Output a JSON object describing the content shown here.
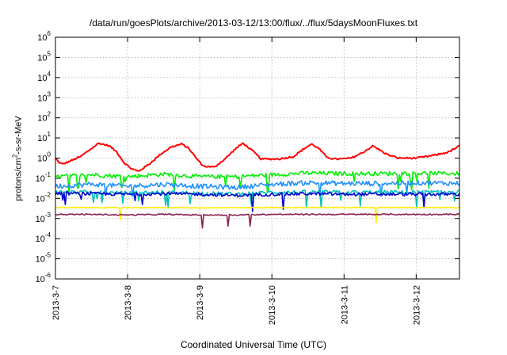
{
  "chart_data": {
    "type": "line",
    "title": "/data/run/goesPlots/archive/2013-03-12/13:00/flux/../flux/5daysMoonFluxes.txt",
    "xlabel": "Coordinated Universal Time (UTC)",
    "ylabel_base": "protons/cm",
    "ylabel_sup": "2",
    "ylabel_rest": "-s-sr-MeV",
    "yscale": "log",
    "ylim": [
      1e-06,
      1000000.0
    ],
    "y_ticks": [
      {
        "base": "10",
        "exp": "-6",
        "value": 1e-06
      },
      {
        "base": "10",
        "exp": "-5",
        "value": 1e-05
      },
      {
        "base": "10",
        "exp": "-4",
        "value": 0.0001
      },
      {
        "base": "10",
        "exp": "-3",
        "value": 0.001
      },
      {
        "base": "10",
        "exp": "-2",
        "value": 0.01
      },
      {
        "base": "10",
        "exp": "-1",
        "value": 0.1
      },
      {
        "base": "10",
        "exp": "0",
        "value": 1
      },
      {
        "base": "10",
        "exp": "1",
        "value": 10
      },
      {
        "base": "10",
        "exp": "2",
        "value": 100
      },
      {
        "base": "10",
        "exp": "3",
        "value": 1000
      },
      {
        "base": "10",
        "exp": "4",
        "value": 10000
      },
      {
        "base": "10",
        "exp": "5",
        "value": 100000
      },
      {
        "base": "10",
        "exp": "6",
        "value": 1000000
      }
    ],
    "x_start": "2013-03-07",
    "xlim_days": [
      0,
      5.6
    ],
    "x_ticks": [
      {
        "label": "2013-3-7",
        "day": 0
      },
      {
        "label": "2013-3-8",
        "day": 1
      },
      {
        "label": "2013-3-9",
        "day": 2
      },
      {
        "label": "2013-3-10",
        "day": 3
      },
      {
        "label": "2013-3-11",
        "day": 4
      },
      {
        "label": "2013-3-12",
        "day": 5
      }
    ],
    "grid": true,
    "series": [
      {
        "color": "#ff0000",
        "x": [
          0,
          0.05,
          0.1,
          0.2,
          0.35,
          0.5,
          0.6,
          0.75,
          0.85,
          0.95,
          1.05,
          1.15,
          1.3,
          1.45,
          1.6,
          1.75,
          1.85,
          1.95,
          2.05,
          2.2,
          2.35,
          2.5,
          2.6,
          2.75,
          2.85,
          2.95,
          3.1,
          3.3,
          3.45,
          3.55,
          3.65,
          3.75,
          3.85,
          3.95,
          4.1,
          4.25,
          4.4,
          4.6,
          4.75,
          4.9,
          5.0,
          5.15,
          5.3,
          5.45,
          5.6
        ],
        "y": [
          1.0,
          0.6,
          0.5,
          0.7,
          1.2,
          3.0,
          5.5,
          4.0,
          2.0,
          0.6,
          0.3,
          0.22,
          0.5,
          1.5,
          3.5,
          5.0,
          3.0,
          1.0,
          0.4,
          0.35,
          0.9,
          3.0,
          5.5,
          2.0,
          0.9,
          0.9,
          0.9,
          1.2,
          3.0,
          5.0,
          3.0,
          1.2,
          0.9,
          0.9,
          1.0,
          1.8,
          4.0,
          1.5,
          1.0,
          1.0,
          1.0,
          1.2,
          1.5,
          2.0,
          4.0
        ]
      },
      {
        "color": "#00ee00",
        "x": [
          0,
          0.5,
          1.0,
          1.5,
          2.0,
          2.5,
          3.0,
          3.5,
          4.0,
          4.5,
          5.0,
          5.6
        ],
        "y": [
          0.12,
          0.15,
          0.12,
          0.16,
          0.12,
          0.12,
          0.15,
          0.18,
          0.17,
          0.17,
          0.18,
          0.17
        ]
      },
      {
        "color": "#1e90ff",
        "x": [
          0,
          0.5,
          1.0,
          1.5,
          2.0,
          2.5,
          3.0,
          3.5,
          4.0,
          4.5,
          5.0,
          5.6
        ],
        "y": [
          0.04,
          0.05,
          0.04,
          0.05,
          0.04,
          0.035,
          0.05,
          0.06,
          0.055,
          0.055,
          0.06,
          0.055
        ]
      },
      {
        "color": "#00bfbf",
        "x": [
          0,
          0.5,
          1.0,
          1.5,
          2.0,
          2.5,
          3.0,
          3.5,
          4.0,
          4.5,
          5.0,
          5.6
        ],
        "y": [
          0.02,
          0.02,
          0.018,
          0.02,
          0.018,
          0.016,
          0.02,
          0.02,
          0.02,
          0.02,
          0.02,
          0.02
        ]
      },
      {
        "color": "#0000cd",
        "x": [
          0,
          0.5,
          1.0,
          1.5,
          2.0,
          2.5,
          3.0,
          3.5,
          4.0,
          4.5,
          5.0,
          5.6
        ],
        "y": [
          0.018,
          0.017,
          0.016,
          0.017,
          0.016,
          0.014,
          0.016,
          0.017,
          0.016,
          0.016,
          0.016,
          0.016
        ]
      },
      {
        "color": "#ffee00",
        "x": [
          0,
          0.5,
          1.0,
          1.5,
          2.0,
          2.5,
          3.0,
          3.5,
          4.0,
          4.5,
          5.0,
          5.6
        ],
        "y": [
          0.0035,
          0.0035,
          0.0034,
          0.0035,
          0.0034,
          0.0034,
          0.0035,
          0.0035,
          0.0035,
          0.0035,
          0.0035,
          0.0035
        ]
      },
      {
        "color": "#8b2252",
        "x": [
          0,
          0.5,
          1.0,
          1.5,
          2.0,
          2.5,
          3.0,
          3.5,
          4.0,
          4.5,
          5.0,
          5.6
        ],
        "y": [
          0.0016,
          0.0016,
          0.0015,
          0.0016,
          0.0015,
          0.0015,
          0.0016,
          0.0016,
          0.0016,
          0.0016,
          0.0016,
          0.0016
        ]
      }
    ]
  }
}
